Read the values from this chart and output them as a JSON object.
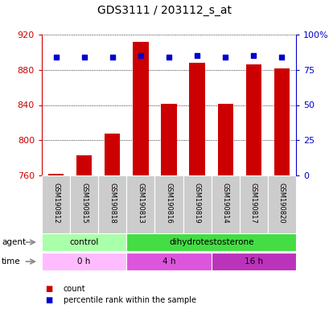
{
  "title": "GDS3111 / 203112_s_at",
  "samples": [
    "GSM190812",
    "GSM190815",
    "GSM190818",
    "GSM190813",
    "GSM190816",
    "GSM190819",
    "GSM190814",
    "GSM190817",
    "GSM190820"
  ],
  "counts": [
    762,
    783,
    808,
    912,
    841,
    888,
    841,
    886,
    882
  ],
  "percentiles": [
    84,
    84,
    84,
    85,
    84,
    85,
    84,
    85,
    84
  ],
  "ymin": 760,
  "ymax": 920,
  "yticks": [
    760,
    800,
    840,
    880,
    920
  ],
  "right_yticks": [
    0,
    25,
    50,
    75,
    100
  ],
  "percentile_scale_min": 0,
  "percentile_scale_max": 100,
  "bar_color": "#cc0000",
  "dot_color": "#0000cc",
  "left_tick_color": "#cc0000",
  "right_tick_color": "#0000cc",
  "agent_groups": [
    {
      "label": "control",
      "start": 0,
      "end": 3,
      "color": "#aaffaa"
    },
    {
      "label": "dihydrotestosterone",
      "start": 3,
      "end": 9,
      "color": "#44dd44"
    }
  ],
  "time_groups": [
    {
      "label": "0 h",
      "start": 0,
      "end": 3,
      "color": "#ffbbff"
    },
    {
      "label": "4 h",
      "start": 3,
      "end": 6,
      "color": "#dd55dd"
    },
    {
      "label": "16 h",
      "start": 6,
      "end": 9,
      "color": "#bb33bb"
    }
  ],
  "legend_items": [
    {
      "color": "#cc0000",
      "label": "count"
    },
    {
      "color": "#0000cc",
      "label": "percentile rank within the sample"
    }
  ]
}
